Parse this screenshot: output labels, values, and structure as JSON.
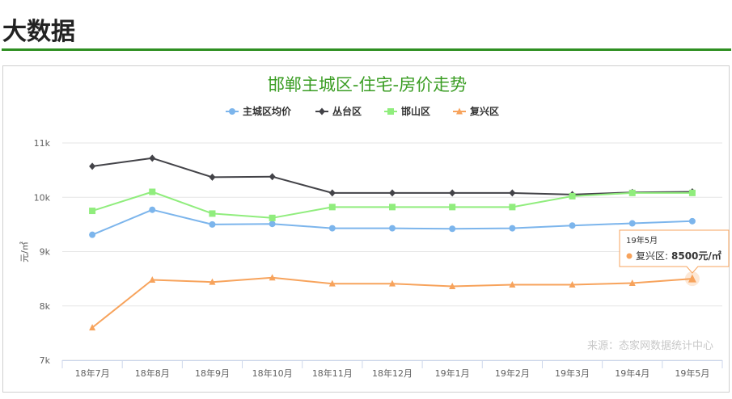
{
  "section": {
    "title": "大数据"
  },
  "chart_data": {
    "type": "line",
    "title": "邯郸主城区-住宅-房价走势",
    "ylabel": "元/㎡",
    "ylim": [
      7000,
      11000
    ],
    "y_ticks": [
      "7k",
      "8k",
      "9k",
      "10k",
      "11k"
    ],
    "y_tick_values": [
      7000,
      8000,
      9000,
      10000,
      11000
    ],
    "grid": true,
    "legend_position": "top-center",
    "categories": [
      "18年7月",
      "18年8月",
      "18年9月",
      "18年10月",
      "18年11月",
      "18年12月",
      "19年1月",
      "19年2月",
      "19年3月",
      "19年4月",
      "19年5月"
    ],
    "series": [
      {
        "name": "主城区均价",
        "color": "#7cb5ec",
        "marker": "circle",
        "values": [
          9310,
          9770,
          9500,
          9510,
          9430,
          9430,
          9420,
          9430,
          9480,
          9520,
          9560
        ]
      },
      {
        "name": "丛台区",
        "color": "#434348",
        "marker": "diamond",
        "values": [
          10570,
          10720,
          10370,
          10380,
          10080,
          10080,
          10080,
          10080,
          10050,
          10090,
          10100
        ]
      },
      {
        "name": "邯山区",
        "color": "#90ed7d",
        "marker": "square",
        "values": [
          9750,
          10100,
          9700,
          9620,
          9820,
          9820,
          9820,
          9820,
          10020,
          10080,
          10080
        ]
      },
      {
        "name": "复兴区",
        "color": "#f7a35c",
        "marker": "triangle",
        "values": [
          7600,
          8480,
          8440,
          8520,
          8410,
          8410,
          8360,
          8390,
          8390,
          8420,
          8500
        ]
      }
    ],
    "source_note": "来源：态家网数据统计中心",
    "tooltip": {
      "header": "19年5月",
      "series_label": "复兴区:",
      "value_text": "8500元/㎡",
      "color": "#f7a35c",
      "series_index": 3,
      "point_index": 10
    }
  }
}
